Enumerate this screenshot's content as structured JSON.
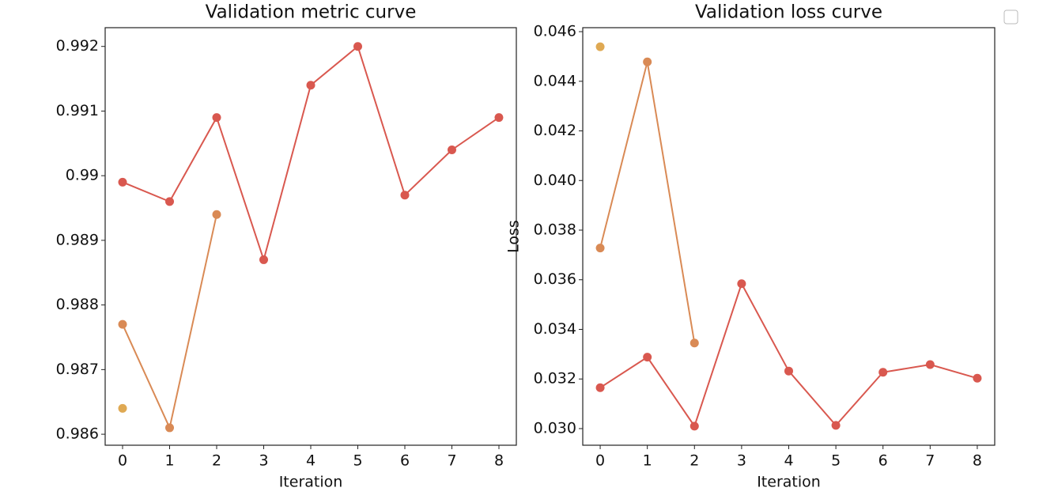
{
  "chart_data": [
    {
      "type": "line",
      "title": "Validation metric curve",
      "x_label": "Iteration",
      "x": [
        0,
        1,
        2,
        3,
        4,
        5,
        6,
        7,
        8
      ],
      "xlim": [
        -0.37,
        8.37
      ],
      "xticks": [
        0,
        1,
        2,
        3,
        4,
        5,
        6,
        7,
        8
      ],
      "ylim": [
        0.98583,
        0.99229
      ],
      "yticks": [
        0.986,
        0.987,
        0.988,
        0.989,
        0.99,
        0.991,
        0.992
      ],
      "series": [
        {
          "color": "#d9584f",
          "values": [
            0.9899,
            0.9896,
            0.9909,
            0.9887,
            0.9914,
            0.992,
            0.9897,
            0.9904,
            0.9909
          ]
        },
        {
          "color": "#d98a55",
          "values": [
            0.9877,
            0.9861,
            0.9894,
            null,
            null,
            null,
            null,
            null,
            null
          ]
        },
        {
          "color": "#dfa953",
          "values": [
            0.9864,
            null,
            null,
            null,
            null,
            null,
            null,
            null,
            null
          ]
        }
      ]
    },
    {
      "type": "line",
      "title": "Validation loss curve",
      "x_label": "Iteration",
      "y_label": "Loss",
      "x": [
        0,
        1,
        2,
        3,
        4,
        5,
        6,
        7,
        8
      ],
      "xlim": [
        -0.37,
        8.37
      ],
      "xticks": [
        0,
        1,
        2,
        3,
        4,
        5,
        6,
        7,
        8
      ],
      "ylim": [
        0.02933,
        0.04616
      ],
      "yticks": [
        {
          "value": 0.03,
          "label": "0.030"
        },
        {
          "value": 0.032,
          "label": "0.032"
        },
        {
          "value": 0.034,
          "label": "0.034"
        },
        {
          "value": 0.036,
          "label": "0.036"
        },
        {
          "value": 0.038,
          "label": "0.038"
        },
        {
          "value": 0.04,
          "label": "0.040"
        },
        {
          "value": 0.042,
          "label": "0.042"
        },
        {
          "value": 0.044,
          "label": "0.044"
        },
        {
          "value": 0.046,
          "label": "0.046"
        }
      ],
      "series": [
        {
          "color": "#d9584f",
          "values": [
            0.03165,
            0.03288,
            0.0301,
            0.03584,
            0.03232,
            0.03013,
            0.03227,
            0.03258,
            0.03203
          ]
        },
        {
          "color": "#d98a55",
          "values": [
            0.03728,
            0.04478,
            0.03345,
            null,
            null,
            null,
            null,
            null,
            null
          ]
        },
        {
          "color": "#dfa953",
          "values": [
            0.04539,
            null,
            null,
            null,
            null,
            null,
            null,
            null,
            null
          ]
        }
      ]
    }
  ]
}
